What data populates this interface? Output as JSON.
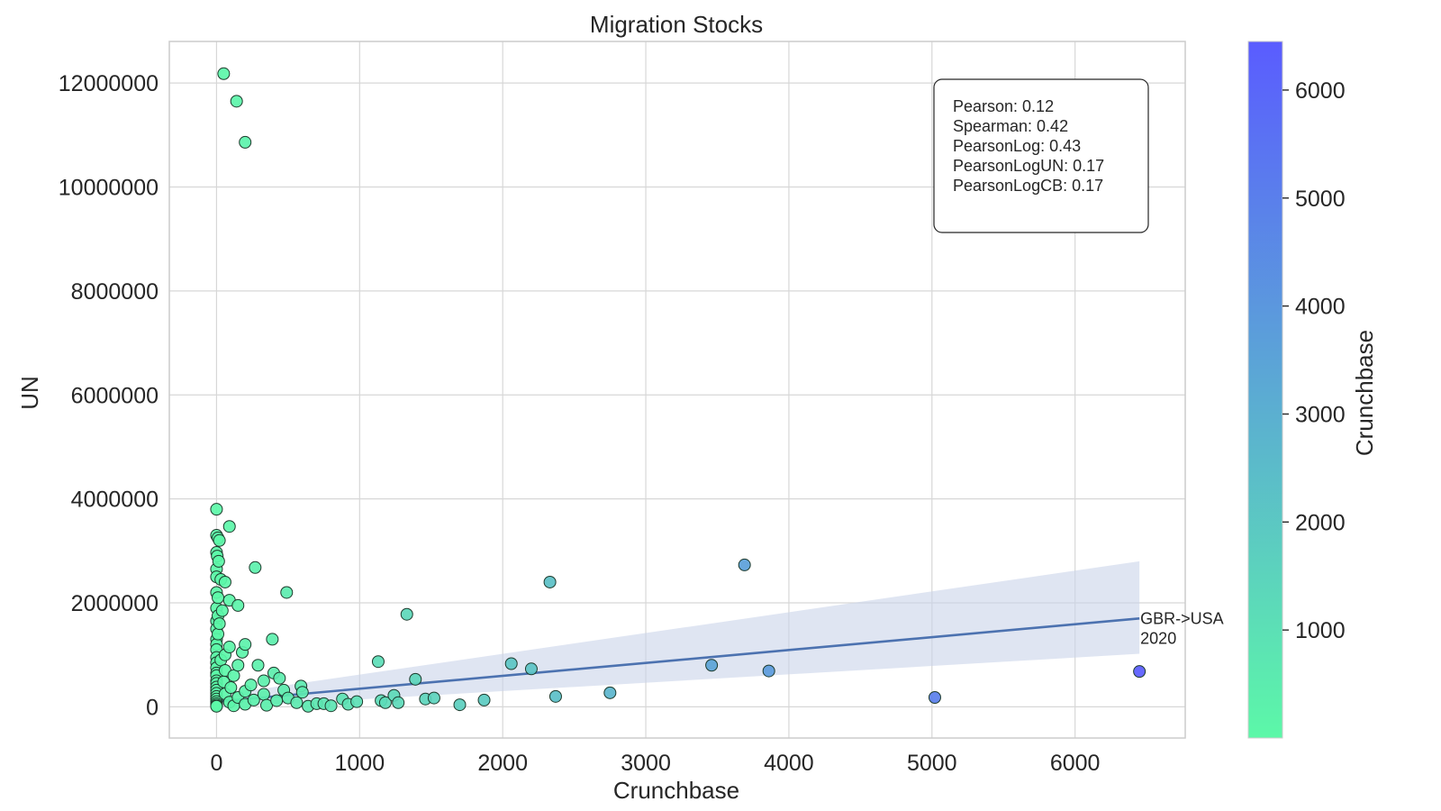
{
  "colors": {
    "grid": "#d7d7d7",
    "frame": "#cccccc",
    "regression_line": "#4c72b0",
    "confidence_band": "#c9d4ea",
    "colormap_low": "#5cf8a8",
    "colormap_high": "#5a5cff"
  },
  "chart_data": {
    "type": "scatter",
    "title": "Migration Stocks",
    "xlabel": "Crunchbase",
    "ylabel": "UN",
    "xlim": [
      -330,
      6770
    ],
    "ylim": [
      -600000,
      12800000
    ],
    "x_ticks": [
      0,
      1000,
      2000,
      3000,
      4000,
      5000,
      6000
    ],
    "x_tick_labels": [
      "0",
      "1000",
      "2000",
      "3000",
      "4000",
      "5000",
      "6000"
    ],
    "y_ticks": [
      0,
      2000000,
      4000000,
      6000000,
      8000000,
      10000000,
      12000000
    ],
    "y_tick_labels": [
      "0",
      "2000000",
      "4000000",
      "6000000",
      "8000000",
      "10000000",
      "12000000"
    ],
    "grid": true,
    "color_by": "Crunchbase",
    "colorbar": {
      "label": "Crunchbase",
      "range": [
        0,
        6450
      ],
      "ticks": [
        1000,
        2000,
        3000,
        4000,
        5000,
        6000
      ],
      "tick_labels": [
        "1000",
        "2000",
        "3000",
        "4000",
        "5000",
        "6000"
      ]
    },
    "stats": [
      "Pearson: 0.12",
      "Spearman: 0.42",
      "PearsonLog: 0.43",
      "PearsonLogUN: 0.17",
      "PearsonLogCB: 0.17"
    ],
    "regression": {
      "line": [
        [
          0,
          100000
        ],
        [
          6450,
          1700000
        ]
      ],
      "band_upper": [
        [
          0,
          220000
        ],
        [
          6450,
          2800000
        ]
      ],
      "band_lower": [
        [
          0,
          -20000
        ],
        [
          6450,
          1020000
        ]
      ]
    },
    "annotation": {
      "text_lines": [
        "GBR->USA",
        "2020"
      ],
      "x": 6450,
      "y": 1700000
    },
    "points": [
      [
        50,
        12180000
      ],
      [
        140,
        11650000
      ],
      [
        200,
        10860000
      ],
      [
        0,
        3800000
      ],
      [
        90,
        3470000
      ],
      [
        0,
        3300000
      ],
      [
        10,
        3250000
      ],
      [
        20,
        3200000
      ],
      [
        270,
        2680000
      ],
      [
        0,
        2970000
      ],
      [
        5,
        2900000
      ],
      [
        15,
        2800000
      ],
      [
        0,
        2650000
      ],
      [
        0,
        2500000
      ],
      [
        30,
        2450000
      ],
      [
        60,
        2400000
      ],
      [
        490,
        2200000
      ],
      [
        0,
        2200000
      ],
      [
        10,
        2100000
      ],
      [
        90,
        2050000
      ],
      [
        150,
        1950000
      ],
      [
        0,
        1900000
      ],
      [
        40,
        1850000
      ],
      [
        10,
        1750000
      ],
      [
        0,
        1650000
      ],
      [
        20,
        1600000
      ],
      [
        0,
        1500000
      ],
      [
        10,
        1400000
      ],
      [
        0,
        1300000
      ],
      [
        390,
        1300000
      ],
      [
        0,
        1200000
      ],
      [
        200,
        1200000
      ],
      [
        90,
        1150000
      ],
      [
        0,
        1100000
      ],
      [
        180,
        1050000
      ],
      [
        60,
        1000000
      ],
      [
        0,
        950000
      ],
      [
        30,
        900000
      ],
      [
        0,
        850000
      ],
      [
        150,
        800000
      ],
      [
        290,
        800000
      ],
      [
        0,
        750000
      ],
      [
        60,
        700000
      ],
      [
        0,
        650000
      ],
      [
        400,
        650000
      ],
      [
        0,
        600000
      ],
      [
        120,
        600000
      ],
      [
        440,
        550000
      ],
      [
        0,
        500000
      ],
      [
        330,
        500000
      ],
      [
        50,
        480000
      ],
      [
        0,
        450000
      ],
      [
        240,
        420000
      ],
      [
        590,
        400000
      ],
      [
        0,
        380000
      ],
      [
        100,
        370000
      ],
      [
        0,
        320000
      ],
      [
        470,
        320000
      ],
      [
        200,
        300000
      ],
      [
        600,
        280000
      ],
      [
        0,
        260000
      ],
      [
        60,
        250000
      ],
      [
        330,
        240000
      ],
      [
        0,
        200000
      ],
      [
        150,
        180000
      ],
      [
        500,
        170000
      ],
      [
        0,
        150000
      ],
      [
        260,
        130000
      ],
      [
        420,
        120000
      ],
      [
        0,
        100000
      ],
      [
        90,
        90000
      ],
      [
        560,
        80000
      ],
      [
        0,
        60000
      ],
      [
        200,
        50000
      ],
      [
        700,
        60000
      ],
      [
        0,
        30000
      ],
      [
        350,
        30000
      ],
      [
        750,
        60000
      ],
      [
        0,
        10000
      ],
      [
        120,
        20000
      ],
      [
        640,
        10000
      ],
      [
        880,
        150000
      ],
      [
        920,
        50000
      ],
      [
        980,
        100000
      ],
      [
        800,
        20000
      ],
      [
        1130,
        870000
      ],
      [
        1330,
        1780000
      ],
      [
        1390,
        530000
      ],
      [
        1150,
        120000
      ],
      [
        1180,
        80000
      ],
      [
        1240,
        220000
      ],
      [
        1270,
        80000
      ],
      [
        1460,
        150000
      ],
      [
        1520,
        170000
      ],
      [
        1700,
        40000
      ],
      [
        1870,
        130000
      ],
      [
        2060,
        830000
      ],
      [
        2200,
        730000
      ],
      [
        2330,
        2400000
      ],
      [
        2370,
        200000
      ],
      [
        2750,
        270000
      ],
      [
        3460,
        800000
      ],
      [
        3690,
        2730000
      ],
      [
        3860,
        690000
      ],
      [
        5020,
        180000
      ],
      [
        6450,
        680000
      ]
    ]
  }
}
